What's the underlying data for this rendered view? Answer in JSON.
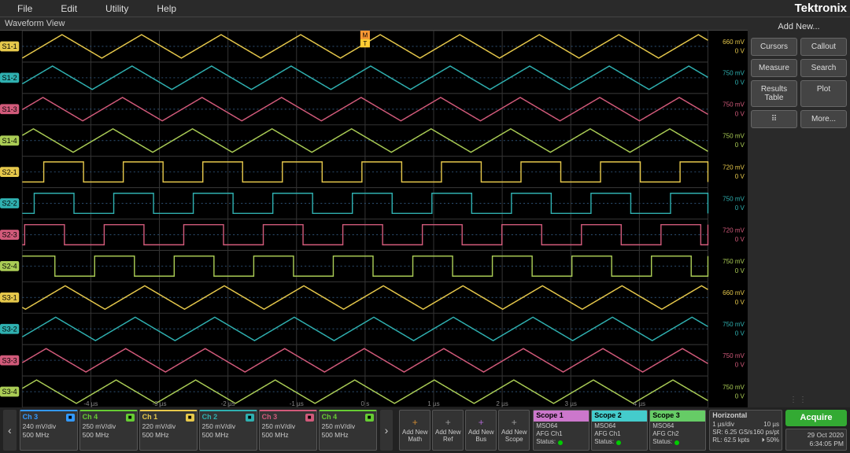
{
  "menu": {
    "file": "File",
    "edit": "Edit",
    "utility": "Utility",
    "help": "Help"
  },
  "brand": "Tektronix",
  "waveform_title": "Waveform View",
  "right": {
    "addnew": "Add New...",
    "cursors": "Cursors",
    "callout": "Callout",
    "measure": "Measure",
    "search": "Search",
    "results": "Results\nTable",
    "plot": "Plot",
    "draw": "⠿",
    "more": "More..."
  },
  "channels_bottom": [
    {
      "name": "Ch 3",
      "vals": [
        "240 mV/div",
        "500 MHz"
      ],
      "color": "#3399ff"
    },
    {
      "name": "Ch 4",
      "vals": [
        "250 mV/div",
        "500 MHz"
      ],
      "color": "#66cc33"
    },
    {
      "name": "Ch 1",
      "vals": [
        "220 mV/div",
        "500 MHz"
      ],
      "color": "#e6c84b"
    },
    {
      "name": "Ch 2",
      "vals": [
        "250 mV/div",
        "500 MHz"
      ],
      "color": "#2fb0b0"
    },
    {
      "name": "Ch 3",
      "vals": [
        "250 mV/div",
        "500 MHz"
      ],
      "color": "#d15a7a"
    },
    {
      "name": "Ch 4",
      "vals": [
        "250 mV/div",
        "500 MHz"
      ],
      "color": "#66cc33"
    }
  ],
  "add_blocks": [
    {
      "top": "+",
      "l1": "Add New",
      "l2": "Math",
      "color": "#cc8833"
    },
    {
      "top": "+",
      "l1": "Add New",
      "l2": "Ref",
      "color": "#999999"
    },
    {
      "top": "+",
      "l1": "Add New",
      "l2": "Bus",
      "color": "#aa66cc"
    },
    {
      "top": "+",
      "l1": "Add New",
      "l2": "Scope",
      "color": "#999999"
    }
  ],
  "scopes": [
    {
      "name": "Scope 1",
      "model": "MSO64",
      "src": "AFG Ch1",
      "status": "Status:",
      "color": "#cc77cc"
    },
    {
      "name": "Scope 2",
      "model": "MSO64",
      "src": "AFG Ch1",
      "status": "Status:",
      "color": "#44cccc"
    },
    {
      "name": "Scope 3",
      "model": "MSO64",
      "src": "AFG Ch2",
      "status": "Status:",
      "color": "#66cc66"
    }
  ],
  "horizontal": {
    "title": "Horizontal",
    "r1a": "1 µs/div",
    "r1b": "10 µs",
    "r2a": "SR: 6.25 GS/s",
    "r2b": "160 ps/pt",
    "r3a": "RL: 62.5 kpts",
    "r3b": "⏵ 50%"
  },
  "acquire": "Acquire",
  "datetime": {
    "d": "29 Oct 2020",
    "t": "6:34:05 PM"
  },
  "xaxis": {
    "ticks": [
      "-4 µs",
      "-3 µs",
      "-2 µs",
      "-1 µs",
      "0 s",
      "1 µs",
      "2 µs",
      "3 µs",
      "4 µs"
    ]
  },
  "waveforms": {
    "grid": {
      "major": "#333333",
      "minor": "#222222",
      "dotted": "#2a2a2a"
    },
    "trigger_marker": {
      "color_m": "#ff9933",
      "color_t": "#ffcc33"
    },
    "lanes": [
      {
        "label": "S1-1",
        "color": "#e6c84b",
        "type": "triangle",
        "period": 100,
        "amp": 14,
        "right1": "660 mV"
      },
      {
        "label": "S1-2",
        "color": "#2fb0b0",
        "type": "triangle",
        "period": 100,
        "amp": 14,
        "right1": "750 mV"
      },
      {
        "label": "S1-3",
        "color": "#d15a7a",
        "type": "triangle",
        "period": 100,
        "amp": 14,
        "right1": "750 mV"
      },
      {
        "label": "S1-4",
        "color": "#aacc55",
        "type": "triangle",
        "period": 100,
        "amp": 14,
        "right1": "750 mV"
      },
      {
        "label": "S2-1",
        "color": "#e6c84b",
        "type": "square",
        "period": 100,
        "amp": 12,
        "right1": "720 mV"
      },
      {
        "label": "S2-2",
        "color": "#2fb0b0",
        "type": "square",
        "period": 100,
        "amp": 12,
        "right1": "750 mV"
      },
      {
        "label": "S2-3",
        "color": "#d15a7a",
        "type": "square",
        "period": 100,
        "amp": 12,
        "right1": "720 mV"
      },
      {
        "label": "S2-4",
        "color": "#aacc55",
        "type": "square",
        "period": 100,
        "amp": 12,
        "right1": "750 mV"
      },
      {
        "label": "S3-1",
        "color": "#e6c84b",
        "type": "triangle",
        "period": 100,
        "amp": 14,
        "right1": "660 mV"
      },
      {
        "label": "S3-2",
        "color": "#2fb0b0",
        "type": "triangle",
        "period": 100,
        "amp": 14,
        "right1": "750 mV"
      },
      {
        "label": "S3-3",
        "color": "#d15a7a",
        "type": "triangle",
        "period": 100,
        "amp": 14,
        "right1": "750 mV"
      },
      {
        "label": "S3-4",
        "color": "#aacc55",
        "type": "triangle",
        "period": 100,
        "amp": 14,
        "right1": "750 mV"
      }
    ]
  }
}
